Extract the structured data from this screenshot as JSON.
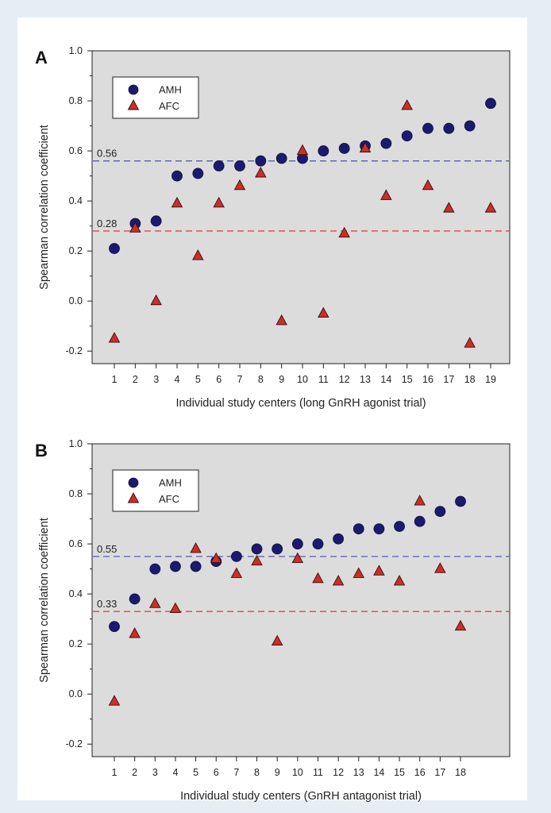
{
  "colors": {
    "amh": "#1c1a6e",
    "afc": "#c8302a",
    "ref_amh": "#5a5ab0",
    "ref_afc": "#d64a44",
    "plot_bg": "#dcdcdc"
  },
  "chart_data": [
    {
      "type": "scatter",
      "panel_label": "A",
      "xlabel": "Individual study centers (long GnRH agonist trial)",
      "ylabel": "Spearman correlation coefficient",
      "ylim": [
        -0.25,
        1.0
      ],
      "yticks": [
        -0.2,
        0.0,
        0.2,
        0.4,
        0.6,
        0.8,
        1.0
      ],
      "ytick_labels": [
        "-0.2",
        "0.0",
        "0.2",
        "0.4",
        "0.6",
        "0.8",
        "1.0"
      ],
      "x": [
        1,
        2,
        3,
        4,
        5,
        6,
        7,
        8,
        9,
        10,
        11,
        12,
        13,
        14,
        15,
        16,
        17,
        18,
        19
      ],
      "xtick_labels": [
        "1",
        "2",
        "3",
        "4",
        "5",
        "6",
        "7",
        "8",
        "9",
        "10",
        "11",
        "12",
        "13",
        "14",
        "15",
        "16",
        "17",
        "18",
        "19"
      ],
      "grid": false,
      "legend_position": "top-left",
      "series": [
        {
          "name": "AMH",
          "marker": "circle",
          "values": [
            0.21,
            0.31,
            0.32,
            0.5,
            0.51,
            0.54,
            0.54,
            0.56,
            0.57,
            0.57,
            0.6,
            0.61,
            0.62,
            0.63,
            0.66,
            0.69,
            0.69,
            0.7,
            0.79
          ]
        },
        {
          "name": "AFC",
          "marker": "triangle",
          "values": [
            -0.15,
            0.29,
            0.0,
            0.39,
            0.18,
            0.39,
            0.46,
            0.51,
            -0.08,
            0.6,
            -0.05,
            0.27,
            0.61,
            0.42,
            0.78,
            0.46,
            0.37,
            -0.17,
            0.37
          ]
        }
      ],
      "reference_lines": [
        {
          "series": "AMH",
          "value": 0.56,
          "label": "0.56"
        },
        {
          "series": "AFC",
          "value": 0.28,
          "label": "0.28"
        }
      ]
    },
    {
      "type": "scatter",
      "panel_label": "B",
      "xlabel": "Individual study centers (GnRH antagonist trial)",
      "ylabel": "Spearman correlation coefficient",
      "ylim": [
        -0.25,
        1.0
      ],
      "yticks": [
        -0.2,
        0.0,
        0.2,
        0.4,
        0.6,
        0.8,
        1.0
      ],
      "ytick_labels": [
        "-0.2",
        "0.0",
        "0.2",
        "0.4",
        "0.6",
        "0.8",
        "1.0"
      ],
      "x": [
        1,
        2,
        3,
        4,
        5,
        6,
        7,
        8,
        9,
        10,
        11,
        12,
        13,
        14,
        15,
        16,
        17,
        18
      ],
      "xtick_labels": [
        "1",
        "2",
        "3",
        "4",
        "5",
        "6",
        "7",
        "8",
        "9",
        "10",
        "11",
        "12",
        "13",
        "14",
        "15",
        "16",
        "17",
        "18"
      ],
      "grid": false,
      "legend_position": "top-left",
      "series": [
        {
          "name": "AMH",
          "marker": "circle",
          "values": [
            0.27,
            0.38,
            0.5,
            0.51,
            0.51,
            0.53,
            0.55,
            0.58,
            0.58,
            0.6,
            0.6,
            0.62,
            0.66,
            0.66,
            0.67,
            0.69,
            0.73,
            0.77
          ]
        },
        {
          "name": "AFC",
          "marker": "triangle",
          "values": [
            -0.03,
            0.24,
            0.36,
            0.34,
            0.58,
            0.54,
            0.48,
            0.53,
            0.21,
            0.54,
            0.46,
            0.45,
            0.48,
            0.49,
            0.45,
            0.77,
            0.5,
            0.27
          ]
        }
      ],
      "reference_lines": [
        {
          "series": "AMH",
          "value": 0.55,
          "label": "0.55"
        },
        {
          "series": "AFC",
          "value": 0.33,
          "label": "0.33"
        }
      ]
    }
  ]
}
